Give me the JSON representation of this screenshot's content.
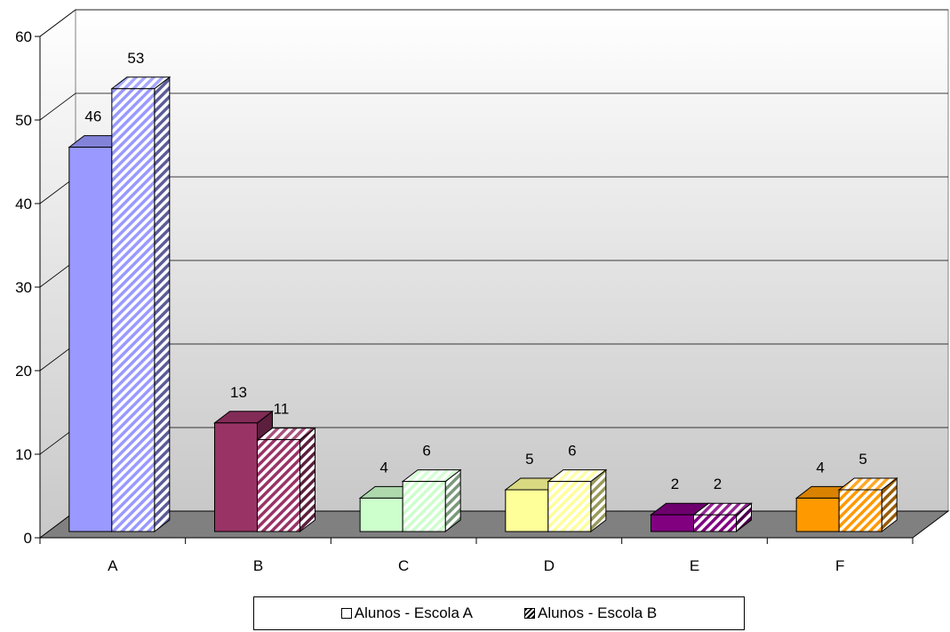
{
  "chart_data": {
    "type": "bar",
    "categories": [
      "A",
      "B",
      "C",
      "D",
      "E",
      "F"
    ],
    "series": [
      {
        "name": "Alunos - Escola A",
        "values": [
          46,
          13,
          4,
          5,
          2,
          4
        ]
      },
      {
        "name": "Alunos - Escola B",
        "values": [
          53,
          11,
          6,
          6,
          2,
          5
        ]
      }
    ],
    "data_labels": [
      [
        "46",
        "13",
        "4",
        "5",
        "2",
        "4"
      ],
      [
        "53",
        "11",
        "6",
        "6",
        "2",
        "5"
      ]
    ],
    "y_ticks": [
      "0",
      "10",
      "20",
      "30",
      "40",
      "50",
      "60"
    ],
    "ylim": [
      0,
      60
    ],
    "title": "",
    "xlabel": "",
    "ylabel": "",
    "grid": true,
    "legend_position": "bottom",
    "style": "3d-clustered-column",
    "colors": {
      "category_fills": [
        "#9999ff",
        "#993366",
        "#ccffcc",
        "#ffff99",
        "#800080",
        "#ff9900"
      ],
      "wall_top": "#ffffff",
      "wall_bottom": "#c8c8c8",
      "floor": "#808080"
    }
  }
}
